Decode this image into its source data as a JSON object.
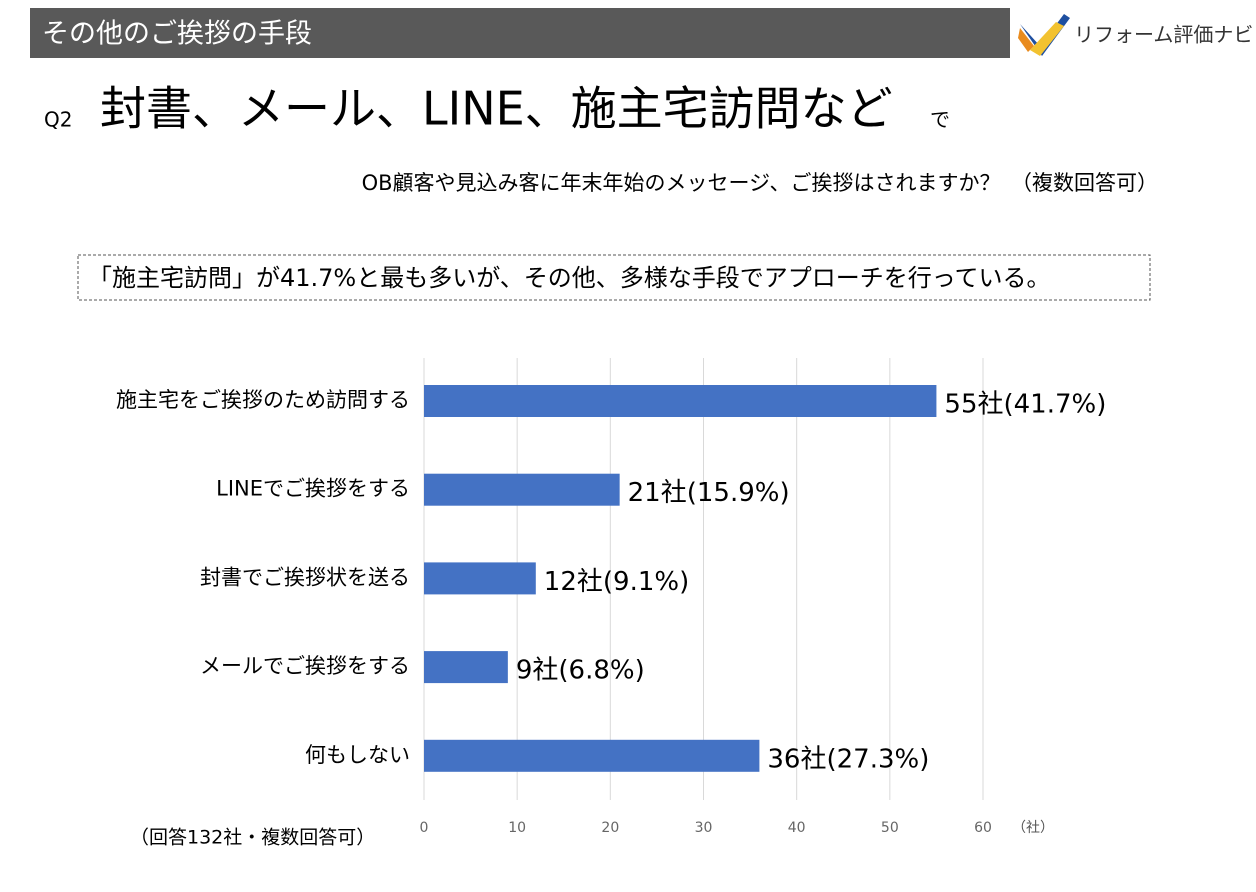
{
  "header": {
    "title": "その他のご挨拶の手段",
    "logo": "リフォーム評価ナビ"
  },
  "question": {
    "number": "Q2",
    "main": "封書、メール、LINE、施主宅訪問など",
    "suffix": "で",
    "sub": "OB顧客や見込み客に年末年始のメッセージ、ご挨拶はされますか？　（複数回答可）"
  },
  "summary": "「施主宅訪問」が41.7%と最も多いが、その他、多様な手段でアプローチを行っている。",
  "note": "（回答132社・複数回答可）",
  "chart_data": {
    "type": "bar",
    "orientation": "horizontal",
    "categories": [
      "施主宅をご挨拶のため訪問する",
      "LINEでご挨拶をする",
      "封書でご挨拶状を送る",
      "メールでご挨拶をする",
      "何もしない"
    ],
    "values": [
      55,
      21,
      12,
      9,
      36
    ],
    "value_labels": [
      "55社(41.7%)",
      "21社(15.9%)",
      "12社(9.1%)",
      "9社(6.8%)",
      "36社(27.3%)"
    ],
    "color": "#4472c4",
    "xlim": [
      0,
      60
    ],
    "xticks": [
      0,
      10,
      20,
      30,
      40,
      50,
      60
    ],
    "x_unit": "（社）",
    "grid": true
  }
}
